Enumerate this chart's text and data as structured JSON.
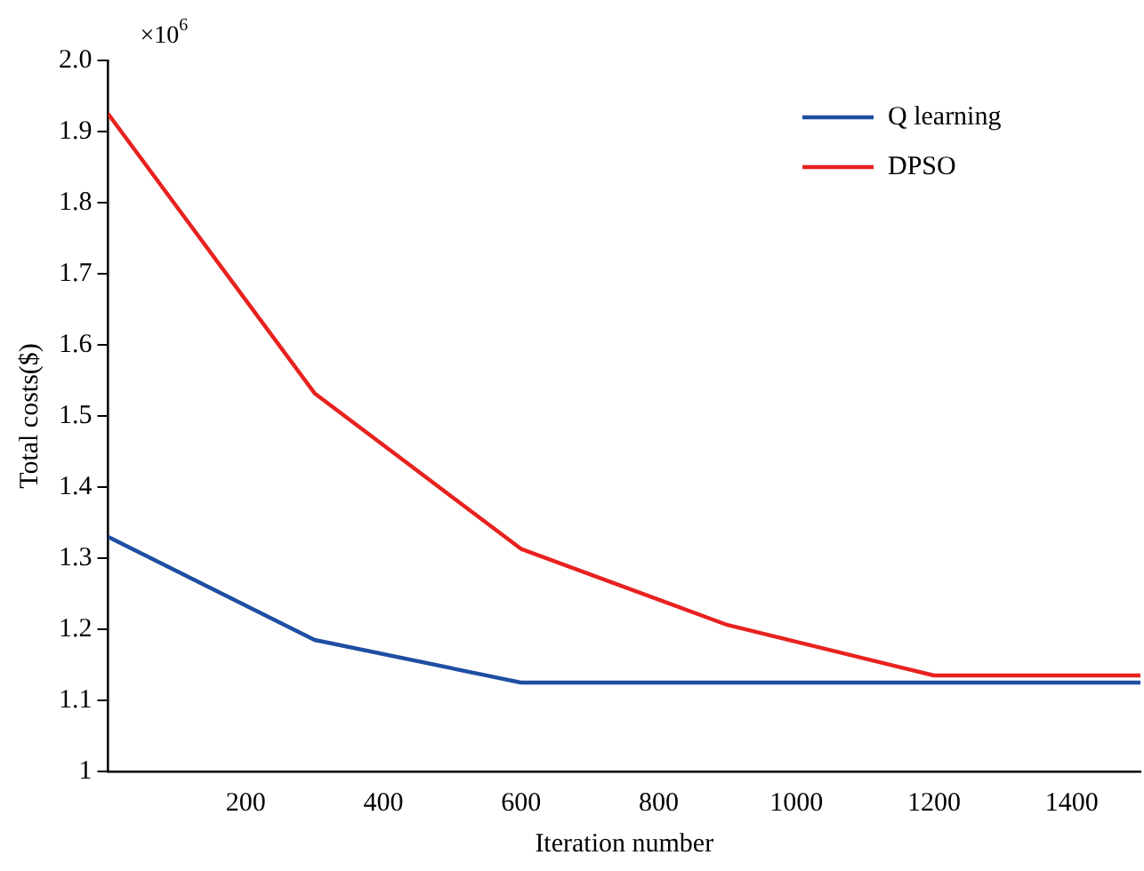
{
  "chart_data": {
    "type": "line",
    "xlabel": "Iteration number",
    "ylabel": "Total costs($)",
    "annotations": [
      "×10$^{6}$"
    ],
    "xlim": [
      0,
      1500
    ],
    "xticks": [
      200,
      400,
      600,
      800,
      1000,
      1200,
      1400
    ],
    "ylim": [
      1,
      2
    ],
    "yticks": [
      1,
      1.1,
      1.2,
      1.3,
      1.4,
      1.5,
      1.6,
      1.7,
      1.8,
      1.9,
      {
        "value": 2,
        "label": "2.0"
      }
    ],
    "grid": false,
    "legend": "top right",
    "marker": "none",
    "line_style": "solid",
    "series": [
      {
        "name": "Q learning",
        "color": "#1f4ea3",
        "x": [
          0,
          300,
          600,
          900,
          1200,
          1500
        ],
        "values": [
          1.33,
          1.185,
          1.125,
          1.125,
          1.125,
          1.125
        ]
      },
      {
        "name": "DPSO",
        "color": "#e8221f",
        "x": [
          0,
          300,
          600,
          900,
          1200,
          1500
        ],
        "values": [
          1.925,
          1.532,
          1.313,
          1.206,
          1.135,
          1.135
        ]
      }
    ]
  }
}
